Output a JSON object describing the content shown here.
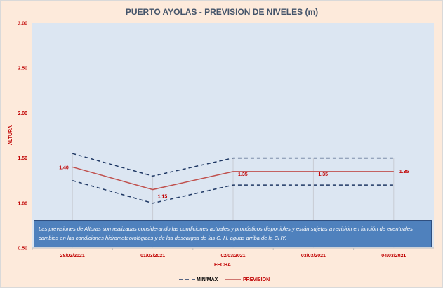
{
  "chart_data": {
    "type": "line",
    "title": "PUERTO AYOLAS - PREVISION DE NIVELES (m)",
    "xlabel": "FECHA",
    "ylabel": "ALTURA",
    "ylim": [
      0.5,
      3.0
    ],
    "yticks": [
      "0.50",
      "1.00",
      "1.50",
      "2.00",
      "2.50",
      "3.00"
    ],
    "categories": [
      "28/02/2021",
      "01/03/2021",
      "02/03/2021",
      "03/03/2021",
      "04/03/2021"
    ],
    "series": [
      {
        "name": "MIN/MAX",
        "max": [
          1.55,
          1.3,
          1.5,
          1.5,
          1.5
        ],
        "min": [
          1.25,
          1.0,
          1.2,
          1.2,
          1.2
        ],
        "color": "#1f3864",
        "style": "dashed"
      },
      {
        "name": "PREVISION",
        "values": [
          1.4,
          1.15,
          1.35,
          1.35,
          1.35
        ],
        "labels": [
          "1.40",
          "1.15",
          "1.35",
          "1.35",
          "1.35"
        ],
        "color": "#c0504d"
      }
    ],
    "legend": "bottom",
    "grid": "vertical",
    "note": "Las previsiones de Alturas son realizadas considerando las condiciones actuales y pronósticos disponibles y están sujetas a revisión en función de eventuales cambios en las condiciones hidrometeorológicas y de las descargas de las C. H. aguas arriba de la CHY."
  }
}
